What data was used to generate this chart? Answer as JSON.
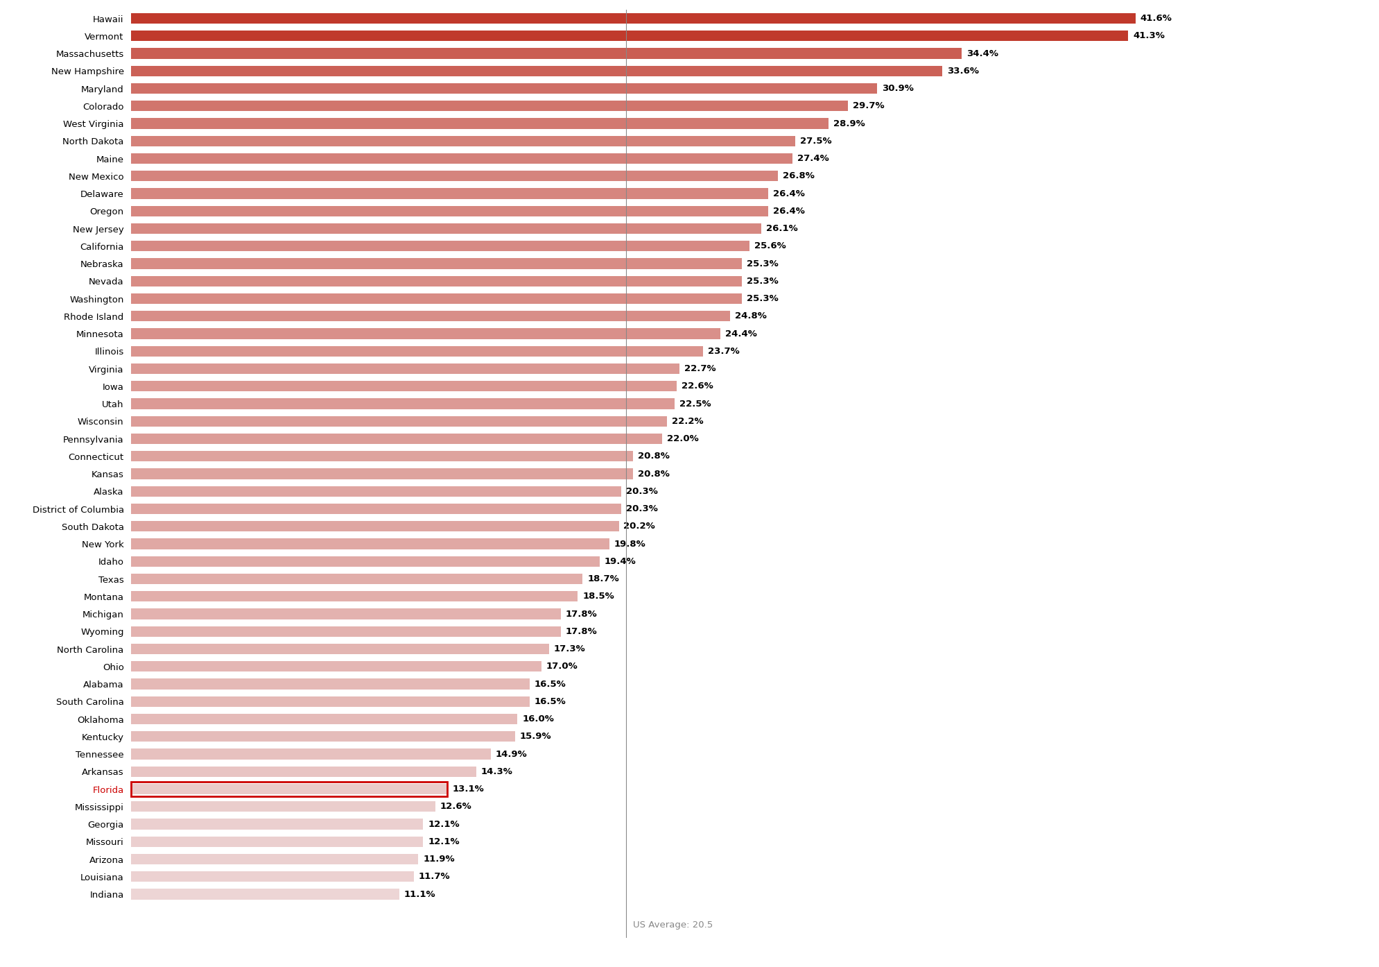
{
  "states": [
    "Hawaii",
    "Vermont",
    "Massachusetts",
    "New Hampshire",
    "Maryland",
    "Colorado",
    "West Virginia",
    "North Dakota",
    "Maine",
    "New Mexico",
    "Delaware",
    "Oregon",
    "New Jersey",
    "California",
    "Nebraska",
    "Nevada",
    "Washington",
    "Rhode Island",
    "Minnesota",
    "Illinois",
    "Virginia",
    "Iowa",
    "Utah",
    "Wisconsin",
    "Pennsylvania",
    "Connecticut",
    "Kansas",
    "Alaska",
    "District of Columbia",
    "South Dakota",
    "New York",
    "Idaho",
    "Texas",
    "Montana",
    "Michigan",
    "Wyoming",
    "North Carolina",
    "Ohio",
    "Alabama",
    "South Carolina",
    "Oklahoma",
    "Kentucky",
    "Tennessee",
    "Arkansas",
    "Florida",
    "Mississippi",
    "Georgia",
    "Missouri",
    "Arizona",
    "Louisiana",
    "Indiana"
  ],
  "values": [
    41.6,
    41.3,
    34.4,
    33.6,
    30.9,
    29.7,
    28.9,
    27.5,
    27.4,
    26.8,
    26.4,
    26.4,
    26.1,
    25.6,
    25.3,
    25.3,
    25.3,
    24.8,
    24.4,
    23.7,
    22.7,
    22.6,
    22.5,
    22.2,
    22.0,
    20.8,
    20.8,
    20.3,
    20.3,
    20.2,
    19.8,
    19.4,
    18.7,
    18.5,
    17.8,
    17.8,
    17.3,
    17.0,
    16.5,
    16.5,
    16.0,
    15.9,
    14.9,
    14.3,
    13.1,
    12.6,
    12.1,
    12.1,
    11.9,
    11.7,
    11.1
  ],
  "us_average": 20.5,
  "highlight_state": "Florida",
  "bar_color_high": "#c0392b",
  "bar_color_low": "#edd5d5",
  "background_color": "#ffffff",
  "label_fontsize": 9.5,
  "value_fontsize": 9.5,
  "title": ""
}
